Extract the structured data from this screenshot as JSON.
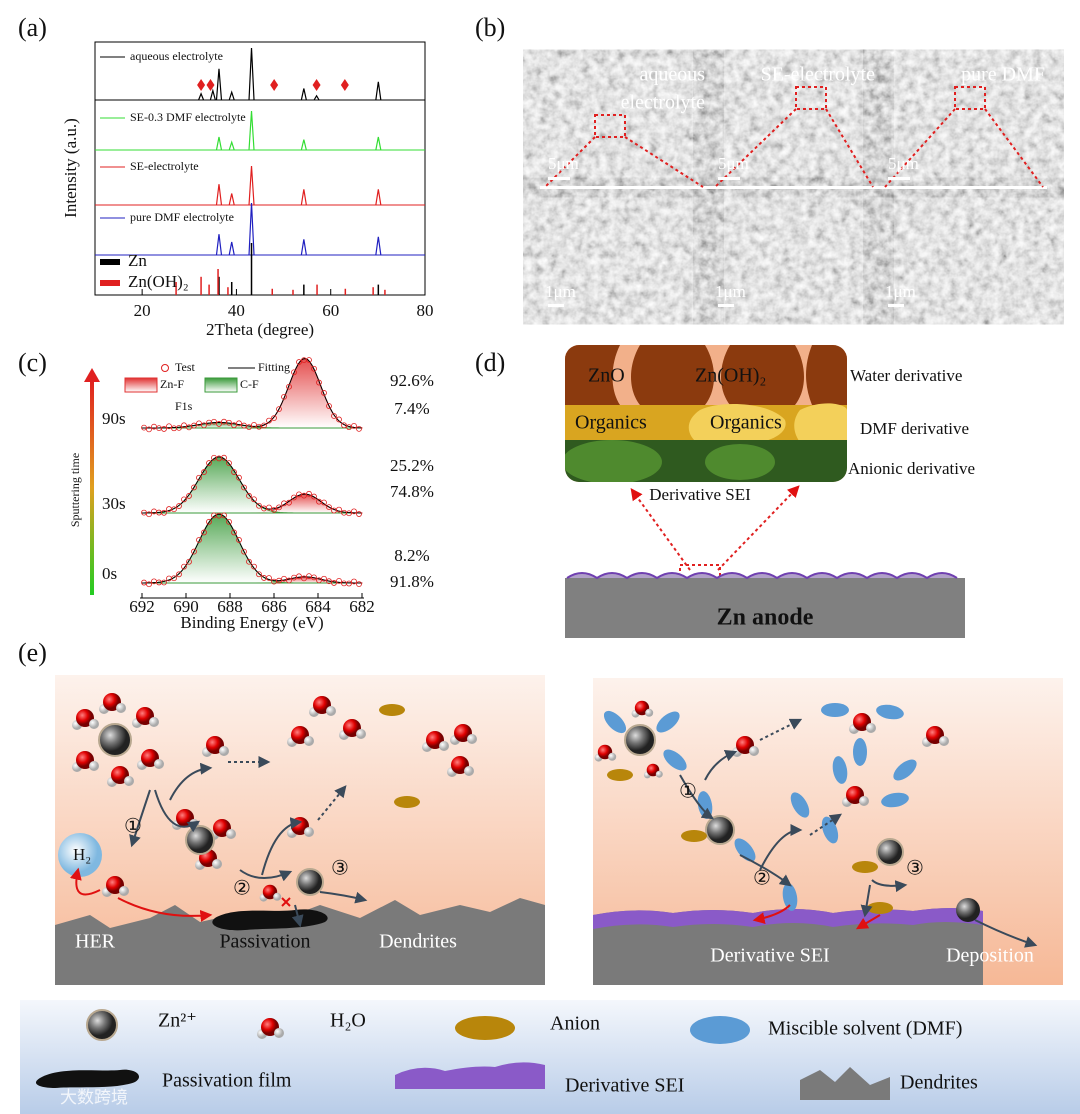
{
  "panels": {
    "a": "(a)",
    "b": "(b)",
    "c": "(c)",
    "d": "(d)",
    "e": "(e)"
  },
  "xrd": {
    "type": "line",
    "xlabel": "2Theta (degree)",
    "ylabel": "Intensity (a.u.)",
    "xlim": [
      10,
      80
    ],
    "xticks": [
      20,
      40,
      60,
      80
    ],
    "series": [
      {
        "name": "aqueous electrolyte",
        "color": "#000000",
        "peaks": [
          32.5,
          35,
          36.3,
          39,
          43.2,
          54.3,
          57,
          70.1
        ],
        "heights": [
          0.12,
          0.18,
          0.6,
          0.15,
          1.0,
          0.22,
          0.08,
          0.35
        ]
      },
      {
        "name": "SE-0.3 DMF electrolyte",
        "color": "#33dd33",
        "peaks": [
          36.3,
          39,
          43.2,
          54.3,
          70.1
        ],
        "heights": [
          0.25,
          0.15,
          0.75,
          0.2,
          0.25
        ]
      },
      {
        "name": "SE-electrolyte",
        "color": "#e02020",
        "peaks": [
          36.3,
          39,
          43.2,
          54.3,
          70.1
        ],
        "heights": [
          0.4,
          0.22,
          0.75,
          0.3,
          0.3
        ]
      },
      {
        "name": "pure DMF electrolyte",
        "color": "#2020c0",
        "peaks": [
          36.3,
          39,
          43.2,
          54.3,
          70.1
        ],
        "heights": [
          0.4,
          0.25,
          1.0,
          0.3,
          0.35
        ]
      }
    ],
    "markers": {
      "color": "#e02020",
      "x": [
        32.5,
        34.5,
        48,
        57,
        63
      ]
    },
    "references": [
      {
        "name": "Zn",
        "color": "#000000",
        "x": [
          36.3,
          39,
          43.2,
          54.3,
          70.1
        ],
        "heights": [
          0.35,
          0.25,
          1.0,
          0.2,
          0.2
        ]
      },
      {
        "name": "Zn(OH)₂",
        "color": "#e02020",
        "x": [
          27.2,
          32.5,
          34.2,
          36.1,
          38.2,
          47.6,
          52,
          57.1,
          63.1,
          69,
          71.5
        ],
        "heights": [
          0.25,
          0.35,
          0.2,
          0.5,
          0.15,
          0.12,
          0.1,
          0.2,
          0.12,
          0.15,
          0.1
        ]
      }
    ]
  },
  "sem": {
    "labels": [
      [
        "aqueous",
        "electrolyte"
      ],
      [
        "SE-electrolyte"
      ],
      [
        "pure DMF"
      ]
    ],
    "scale_top": "5μm",
    "scale_bottom": "1μm"
  },
  "xps": {
    "xlabel": "Binding Energy (eV)",
    "ylabel": "Sputtering time",
    "xlim": [
      692,
      682
    ],
    "xticks": [
      692,
      690,
      688,
      686,
      684,
      682
    ],
    "legend": {
      "test": "Test",
      "fitting": "Fitting",
      "znf": "Zn-F",
      "cf": "C-F"
    },
    "annotation": "F1s",
    "components": [
      {
        "center": 684.6,
        "color": "#e03030"
      },
      {
        "center": 688.5,
        "color": "#3a9a3a"
      }
    ],
    "rows": [
      {
        "time": "90s",
        "values": [
          92.6,
          7.4
        ],
        "value_labels": [
          "92.6%",
          "7.4%"
        ]
      },
      {
        "time": "30s",
        "values": [
          25.2,
          74.8
        ],
        "value_labels": [
          "25.2%",
          "74.8%"
        ]
      },
      {
        "time": "0s",
        "values": [
          8.2,
          91.8
        ],
        "value_labels": [
          "8.2%",
          "91.8%"
        ]
      }
    ]
  },
  "sei": {
    "layers": [
      "ZnO",
      "Zn(OH)₂",
      "Organics",
      "Organics"
    ],
    "sides": [
      "Water derivative",
      "DMF derivative",
      "Anionic derivative"
    ],
    "caption": "Derivative SEI",
    "anode": "Zn anode"
  },
  "mechanism": {
    "left": [
      "HER",
      "Passivation",
      "Dendrites"
    ],
    "gas": "H₂",
    "steps": [
      "①",
      "②",
      "③"
    ],
    "right": [
      "Derivative SEI",
      "Deposition"
    ]
  },
  "legend": [
    "Zn²⁺",
    "H₂O",
    "Anion",
    "Miscible solvent (DMF)",
    "Passivation film",
    "Derivative SEI",
    "Dendrites"
  ],
  "watermark": "大数跨境"
}
